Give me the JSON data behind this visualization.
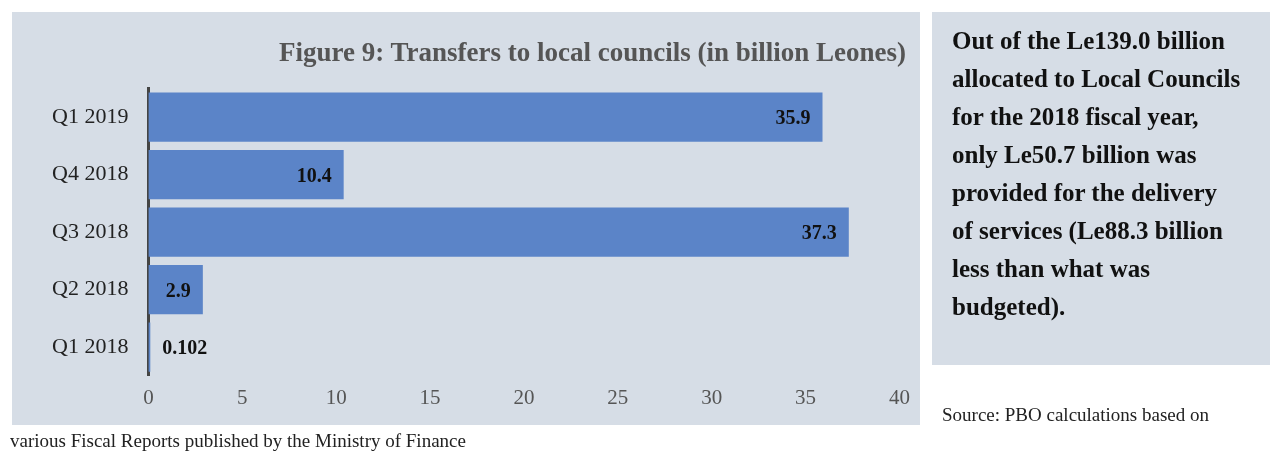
{
  "chart_data": {
    "type": "bar",
    "orientation": "horizontal",
    "title": "Figure 9: Transfers to local councils (in billion Leones)",
    "categories": [
      "Q1 2019",
      "Q4 2018",
      "Q3 2018",
      "Q2 2018",
      "Q1 2018"
    ],
    "values": [
      35.9,
      10.4,
      37.3,
      2.9,
      0.102
    ],
    "color": "#5b84c8",
    "xlim": [
      0,
      40
    ],
    "xticks": [
      0,
      5,
      10,
      15,
      20,
      25,
      30,
      35,
      40
    ],
    "grid": false,
    "legend": false,
    "data_labels": true,
    "annotations": [
      "Out of the Le139.0 billion allocated to Local Councils for the 2018 fiscal year, only Le50.7 billion was provided for the delivery of services (Le88.3 billion less than what was budgeted).",
      "Source: PBO calculations based on various Fiscal Reports published by the Ministry of Finance"
    ]
  }
}
